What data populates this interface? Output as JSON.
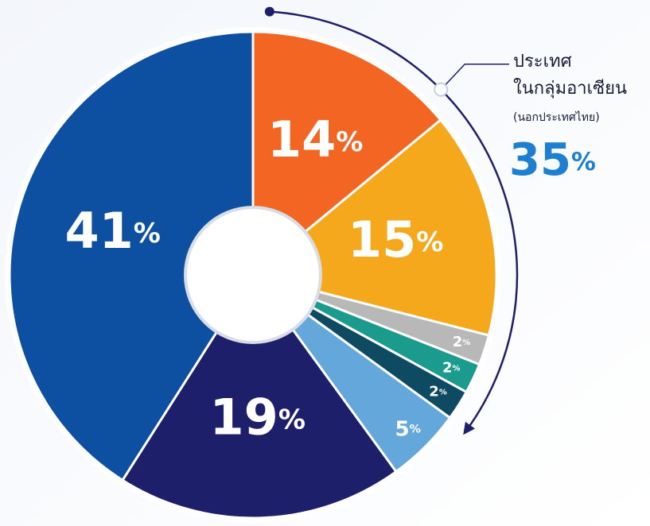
{
  "chart_data": {
    "type": "pie",
    "values": [
      14,
      15,
      2,
      2,
      2,
      5,
      19,
      41
    ],
    "value_labels": [
      "14%",
      "15%",
      "2%",
      "2%",
      "2%",
      "5%",
      "19%",
      "41%"
    ],
    "colors": [
      "#f26522",
      "#f5a81c",
      "#b8b8b8",
      "#1a9b8e",
      "#0f4a63",
      "#64a7da",
      "#1e1f6b",
      "#0d4fa0"
    ],
    "annotation": {
      "lines": [
        "ประเทศ",
        "ในกลุ่มอาเซียน",
        "(นอกประเทศไทย)"
      ],
      "value": 35,
      "value_label": "35%"
    }
  }
}
